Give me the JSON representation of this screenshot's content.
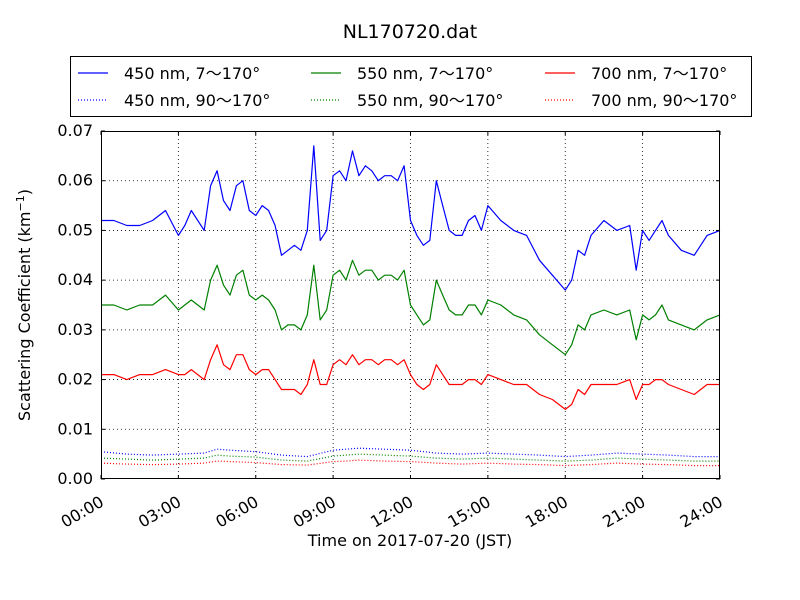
{
  "chart_data": {
    "type": "line",
    "title": "NL170720.dat",
    "xlabel": "Time on 2017-07-20 (JST)",
    "ylabel_main": "Scattering Coefficient (km",
    "ylabel_sup": "−1",
    "ylabel_close": ")",
    "xlim": [
      0,
      24
    ],
    "ylim": [
      0,
      0.07
    ],
    "grid": true,
    "legend_position": "top (above plot)",
    "xtick_values": [
      0,
      3,
      6,
      9,
      12,
      15,
      18,
      21,
      24
    ],
    "xtick_labels": [
      "00:00",
      "03:00",
      "06:00",
      "09:00",
      "12:00",
      "15:00",
      "18:00",
      "21:00",
      "24:00"
    ],
    "ytick_values": [
      0,
      0.01,
      0.02,
      0.03,
      0.04,
      0.05,
      0.06,
      0.07
    ],
    "ytick_labels": [
      "0.00",
      "0.01",
      "0.02",
      "0.03",
      "0.04",
      "0.05",
      "0.06",
      "0.07"
    ],
    "x_unit": "hour",
    "series": [
      {
        "name": "450 nm, 7～170°",
        "color": "#0000ff",
        "style": "solid",
        "x": [
          0,
          0.5,
          1,
          1.5,
          2,
          2.5,
          3,
          3.25,
          3.5,
          4,
          4.25,
          4.5,
          4.75,
          5,
          5.25,
          5.5,
          5.75,
          6,
          6.25,
          6.5,
          6.75,
          7,
          7.25,
          7.5,
          7.75,
          8,
          8.25,
          8.5,
          8.75,
          9,
          9.25,
          9.5,
          9.75,
          10,
          10.25,
          10.5,
          10.75,
          11,
          11.25,
          11.5,
          11.75,
          12,
          12.25,
          12.5,
          12.75,
          13,
          13.25,
          13.5,
          13.75,
          14,
          14.25,
          14.5,
          14.75,
          15,
          15.5,
          16,
          16.5,
          17,
          17.5,
          18,
          18.25,
          18.5,
          18.75,
          19,
          19.5,
          20,
          20.5,
          20.75,
          21,
          21.25,
          21.5,
          21.75,
          22,
          22.5,
          23,
          23.5,
          24
        ],
        "values": [
          0.052,
          0.052,
          0.051,
          0.051,
          0.052,
          0.054,
          0.049,
          0.051,
          0.054,
          0.05,
          0.059,
          0.062,
          0.056,
          0.054,
          0.059,
          0.06,
          0.054,
          0.053,
          0.055,
          0.054,
          0.051,
          0.045,
          0.046,
          0.047,
          0.046,
          0.05,
          0.067,
          0.048,
          0.05,
          0.061,
          0.062,
          0.06,
          0.066,
          0.061,
          0.063,
          0.062,
          0.06,
          0.061,
          0.061,
          0.06,
          0.063,
          0.052,
          0.049,
          0.047,
          0.048,
          0.06,
          0.055,
          0.05,
          0.049,
          0.049,
          0.052,
          0.053,
          0.05,
          0.055,
          0.052,
          0.05,
          0.049,
          0.044,
          0.041,
          0.038,
          0.04,
          0.046,
          0.045,
          0.049,
          0.052,
          0.05,
          0.051,
          0.042,
          0.05,
          0.048,
          0.05,
          0.052,
          0.049,
          0.046,
          0.045,
          0.049,
          0.05
        ]
      },
      {
        "name": "550 nm, 7～170°",
        "color": "#008000",
        "style": "solid",
        "x": [
          0,
          0.5,
          1,
          1.5,
          2,
          2.5,
          3,
          3.25,
          3.5,
          4,
          4.25,
          4.5,
          4.75,
          5,
          5.25,
          5.5,
          5.75,
          6,
          6.25,
          6.5,
          6.75,
          7,
          7.25,
          7.5,
          7.75,
          8,
          8.25,
          8.5,
          8.75,
          9,
          9.25,
          9.5,
          9.75,
          10,
          10.25,
          10.5,
          10.75,
          11,
          11.25,
          11.5,
          11.75,
          12,
          12.25,
          12.5,
          12.75,
          13,
          13.25,
          13.5,
          13.75,
          14,
          14.25,
          14.5,
          14.75,
          15,
          15.5,
          16,
          16.5,
          17,
          17.5,
          18,
          18.25,
          18.5,
          18.75,
          19,
          19.5,
          20,
          20.5,
          20.75,
          21,
          21.25,
          21.5,
          21.75,
          22,
          22.5,
          23,
          23.5,
          24
        ],
        "values": [
          0.035,
          0.035,
          0.034,
          0.035,
          0.035,
          0.037,
          0.034,
          0.035,
          0.036,
          0.034,
          0.04,
          0.043,
          0.039,
          0.037,
          0.041,
          0.042,
          0.037,
          0.036,
          0.037,
          0.036,
          0.034,
          0.03,
          0.031,
          0.031,
          0.03,
          0.033,
          0.043,
          0.032,
          0.034,
          0.041,
          0.042,
          0.04,
          0.044,
          0.041,
          0.042,
          0.042,
          0.04,
          0.041,
          0.041,
          0.04,
          0.042,
          0.035,
          0.033,
          0.031,
          0.032,
          0.04,
          0.037,
          0.034,
          0.033,
          0.033,
          0.035,
          0.035,
          0.033,
          0.036,
          0.035,
          0.033,
          0.032,
          0.029,
          0.027,
          0.025,
          0.027,
          0.031,
          0.03,
          0.033,
          0.034,
          0.033,
          0.034,
          0.028,
          0.033,
          0.032,
          0.033,
          0.035,
          0.032,
          0.031,
          0.03,
          0.032,
          0.033
        ]
      },
      {
        "name": "700 nm, 7～170°",
        "color": "#ff0000",
        "style": "solid",
        "x": [
          0,
          0.5,
          1,
          1.5,
          2,
          2.5,
          3,
          3.25,
          3.5,
          4,
          4.25,
          4.5,
          4.75,
          5,
          5.25,
          5.5,
          5.75,
          6,
          6.25,
          6.5,
          6.75,
          7,
          7.25,
          7.5,
          7.75,
          8,
          8.25,
          8.5,
          8.75,
          9,
          9.25,
          9.5,
          9.75,
          10,
          10.25,
          10.5,
          10.75,
          11,
          11.25,
          11.5,
          11.75,
          12,
          12.25,
          12.5,
          12.75,
          13,
          13.25,
          13.5,
          13.75,
          14,
          14.25,
          14.5,
          14.75,
          15,
          15.5,
          16,
          16.5,
          17,
          17.5,
          18,
          18.25,
          18.5,
          18.75,
          19,
          19.5,
          20,
          20.5,
          20.75,
          21,
          21.25,
          21.5,
          21.75,
          22,
          22.5,
          23,
          23.5,
          24
        ],
        "values": [
          0.021,
          0.021,
          0.02,
          0.021,
          0.021,
          0.022,
          0.021,
          0.021,
          0.022,
          0.02,
          0.024,
          0.027,
          0.023,
          0.022,
          0.025,
          0.025,
          0.022,
          0.021,
          0.022,
          0.022,
          0.02,
          0.018,
          0.018,
          0.018,
          0.017,
          0.019,
          0.024,
          0.019,
          0.019,
          0.023,
          0.024,
          0.023,
          0.025,
          0.023,
          0.024,
          0.024,
          0.023,
          0.024,
          0.024,
          0.023,
          0.024,
          0.021,
          0.019,
          0.018,
          0.019,
          0.023,
          0.021,
          0.019,
          0.019,
          0.019,
          0.02,
          0.02,
          0.019,
          0.021,
          0.02,
          0.019,
          0.019,
          0.017,
          0.016,
          0.014,
          0.015,
          0.018,
          0.017,
          0.019,
          0.019,
          0.019,
          0.02,
          0.016,
          0.019,
          0.019,
          0.02,
          0.02,
          0.019,
          0.018,
          0.017,
          0.019,
          0.019
        ]
      },
      {
        "name": "450 nm, 90～170°",
        "color": "#0000ff",
        "style": "dotted",
        "x": [
          0,
          1,
          2,
          3,
          4,
          4.5,
          5,
          6,
          7,
          8,
          9,
          9.5,
          10,
          11,
          12,
          13,
          14,
          15,
          16,
          17,
          18,
          19,
          20,
          21,
          22,
          23,
          24
        ],
        "values": [
          0.0055,
          0.005,
          0.0048,
          0.005,
          0.0052,
          0.006,
          0.0058,
          0.0055,
          0.0048,
          0.0045,
          0.0058,
          0.006,
          0.0062,
          0.006,
          0.0058,
          0.0052,
          0.005,
          0.0052,
          0.005,
          0.0048,
          0.0045,
          0.0048,
          0.0052,
          0.005,
          0.0048,
          0.0045,
          0.0045
        ]
      },
      {
        "name": "550 nm, 90～170°",
        "color": "#008000",
        "style": "dotted",
        "x": [
          0,
          1,
          2,
          3,
          4,
          4.5,
          5,
          6,
          7,
          8,
          9,
          9.5,
          10,
          11,
          12,
          13,
          14,
          15,
          16,
          17,
          18,
          19,
          20,
          21,
          22,
          23,
          24
        ],
        "values": [
          0.0042,
          0.004,
          0.0038,
          0.004,
          0.0042,
          0.0048,
          0.0046,
          0.0044,
          0.0038,
          0.0036,
          0.0046,
          0.0048,
          0.005,
          0.0048,
          0.0046,
          0.0042,
          0.004,
          0.0042,
          0.004,
          0.0038,
          0.0036,
          0.0038,
          0.0042,
          0.004,
          0.0038,
          0.0036,
          0.0036
        ]
      },
      {
        "name": "700 nm, 90～170°",
        "color": "#ff0000",
        "style": "dotted",
        "x": [
          0,
          1,
          2,
          3,
          4,
          4.5,
          5,
          6,
          7,
          8,
          9,
          9.5,
          10,
          11,
          12,
          13,
          14,
          15,
          16,
          17,
          18,
          19,
          20,
          21,
          22,
          23,
          24
        ],
        "values": [
          0.0032,
          0.003,
          0.0029,
          0.003,
          0.0032,
          0.0036,
          0.0035,
          0.0033,
          0.0029,
          0.0028,
          0.0035,
          0.0036,
          0.0038,
          0.0036,
          0.0035,
          0.0032,
          0.003,
          0.0032,
          0.003,
          0.0029,
          0.0027,
          0.0029,
          0.0032,
          0.003,
          0.0029,
          0.0027,
          0.0027
        ]
      }
    ],
    "legend_order": [
      0,
      1,
      2,
      3,
      4,
      5
    ]
  }
}
